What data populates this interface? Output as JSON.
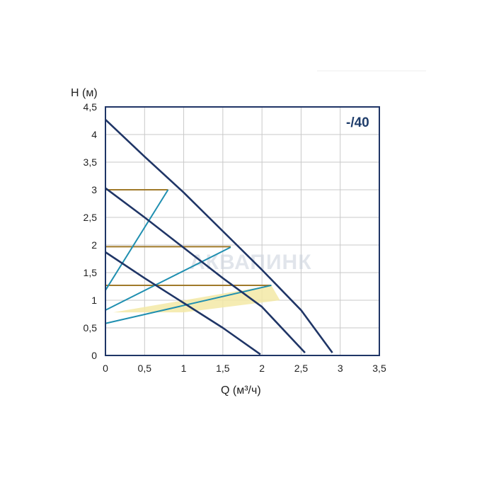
{
  "chart_data": {
    "type": "line",
    "title": "-/40",
    "xlabel": "Q (м³/ч)",
    "ylabel": "H (м)",
    "xlim": [
      0,
      3.5
    ],
    "ylim": [
      0,
      4.5
    ],
    "xticks": [
      "0",
      "0,5",
      "1",
      "1,5",
      "2",
      "2,5",
      "3",
      "3,5"
    ],
    "yticks": [
      "0",
      "0,5",
      "1",
      "1,5",
      "2",
      "2,5",
      "3",
      "3,5",
      "4",
      "4,5"
    ],
    "grid": true,
    "watermark": "АКВАПИНК",
    "colors": {
      "pump_curve": "#1f3566",
      "system_curve": "#1f8fb0",
      "setpoint_line": "#a07a2a",
      "working_area": "#f3e9a6",
      "grid": "#c9c9c9",
      "axis": "#1f3566"
    },
    "pump_curves": [
      {
        "points": [
          [
            0,
            4.27
          ],
          [
            0.5,
            3.6
          ],
          [
            1,
            2.95
          ],
          [
            1.5,
            2.25
          ],
          [
            2,
            1.55
          ],
          [
            2.5,
            0.82
          ],
          [
            2.9,
            0.05
          ]
        ]
      },
      {
        "points": [
          [
            0,
            3.03
          ],
          [
            0.5,
            2.5
          ],
          [
            1,
            1.95
          ],
          [
            1.5,
            1.4
          ],
          [
            2,
            0.88
          ],
          [
            2.55,
            0.05
          ]
        ]
      },
      {
        "points": [
          [
            0,
            1.87
          ],
          [
            0.5,
            1.4
          ],
          [
            1,
            0.95
          ],
          [
            1.5,
            0.5
          ],
          [
            1.98,
            0.02
          ]
        ]
      }
    ],
    "system_curves": [
      {
        "points": [
          [
            0,
            1.18
          ],
          [
            0.8,
            3.0
          ]
        ]
      },
      {
        "points": [
          [
            0,
            0.82
          ],
          [
            1.6,
            1.96
          ]
        ]
      },
      {
        "points": [
          [
            0,
            0.58
          ],
          [
            2.12,
            1.27
          ]
        ]
      }
    ],
    "setpoint_lines": [
      {
        "y": 3.0,
        "x_end": 0.8
      },
      {
        "y": 1.97,
        "x_end": 1.6
      },
      {
        "y": 1.27,
        "x_end": 2.12
      }
    ],
    "working_area": [
      [
        0.1,
        0.78
      ],
      [
        2.12,
        1.27
      ],
      [
        2.23,
        1.0
      ],
      [
        1.0,
        0.78
      ]
    ]
  }
}
